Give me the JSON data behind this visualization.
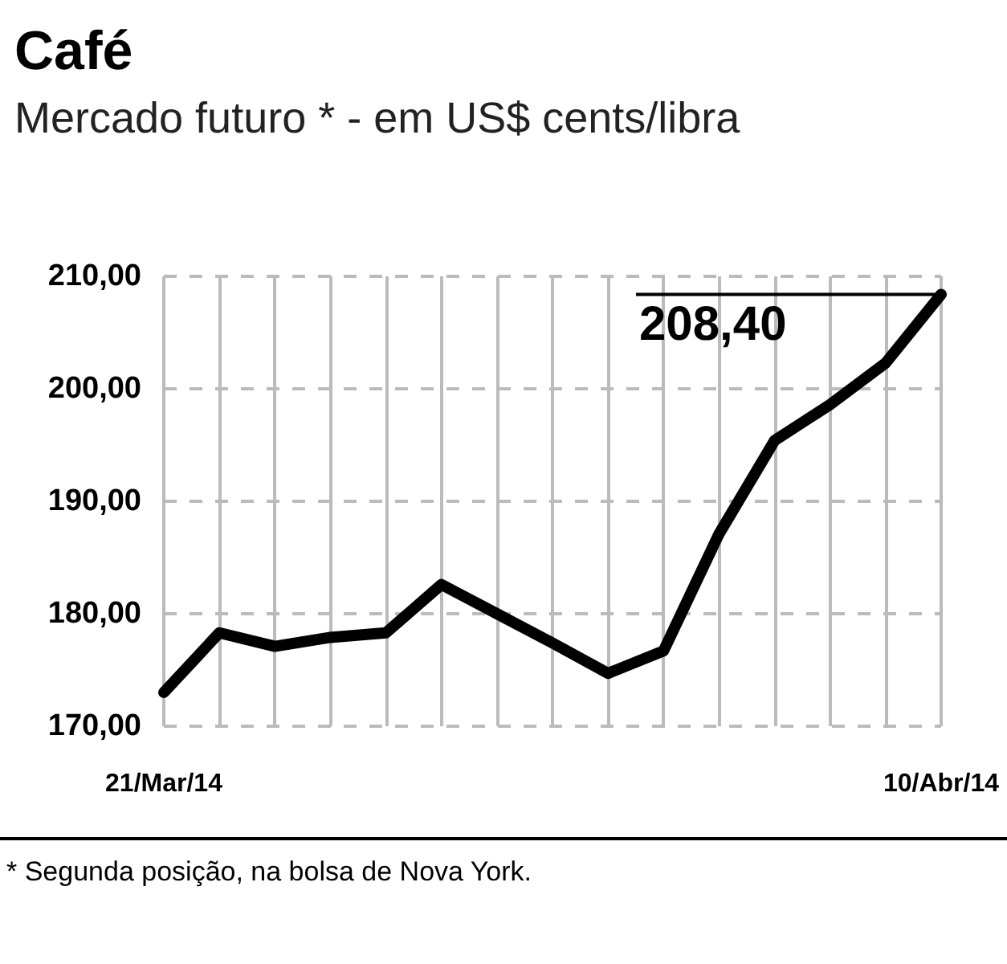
{
  "chart_data": {
    "type": "line",
    "title": "Café",
    "subtitle": "Mercado futuro * - em US$ cents/libra",
    "categories": [
      "21/Mar/14",
      null,
      null,
      null,
      null,
      null,
      null,
      null,
      null,
      null,
      null,
      null,
      null,
      null,
      "10/Abr/14"
    ],
    "series": [
      {
        "color": "#000000",
        "values": [
          173.0,
          178.3,
          177.1,
          177.9,
          178.3,
          182.6,
          180.0,
          177.4,
          174.7,
          176.7,
          187.1,
          195.4,
          198.6,
          202.3,
          208.4
        ]
      }
    ],
    "ylim": [
      170,
      210
    ],
    "yticks": [
      {
        "value": 170,
        "label": "170,00"
      },
      {
        "value": 180,
        "label": "180,00"
      },
      {
        "value": 190,
        "label": "190,00"
      },
      {
        "value": 200,
        "label": "200,00"
      },
      {
        "value": 210,
        "label": "210,00"
      }
    ],
    "annotations": [
      {
        "text": "208,40",
        "x": "10/Abr/14",
        "y": 208.4
      },
      "* Segunda posição, na bolsa de Nova York."
    ],
    "grid": true,
    "marker": "none",
    "line_style": "solid"
  }
}
